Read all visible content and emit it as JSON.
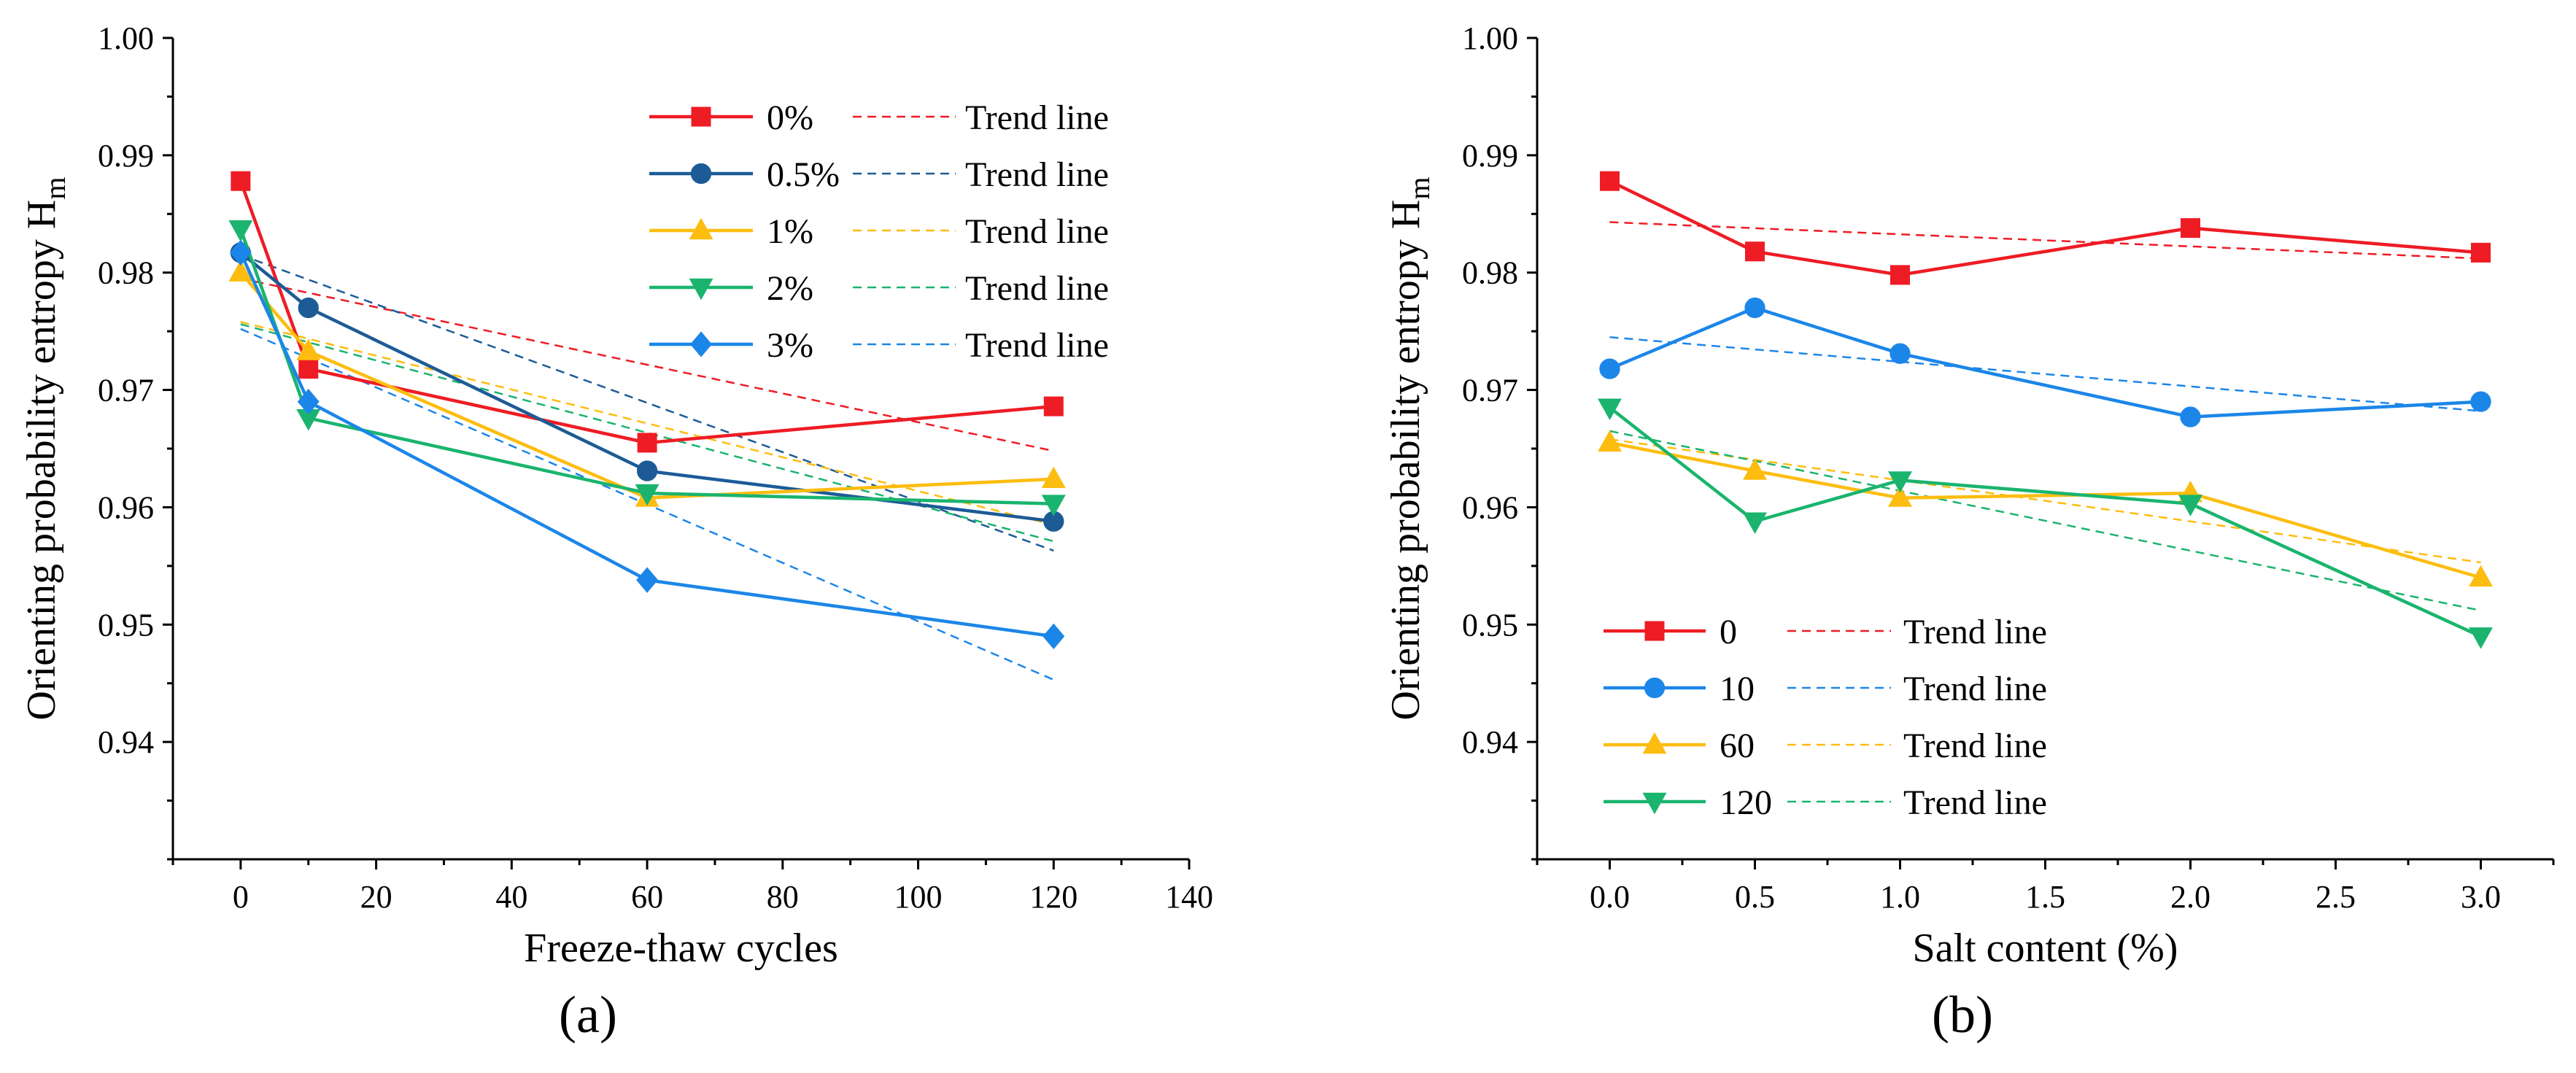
{
  "chart_data": [
    {
      "type": "line",
      "panel_label": "(a)",
      "xlabel": "Freeze-thaw cycles",
      "ylabel": "Orienting probability entropy H",
      "ylabel_subscript": "m",
      "xlim": [
        -10,
        140
      ],
      "ylim": [
        0.93,
        1.0
      ],
      "xticks": [
        0,
        20,
        40,
        60,
        80,
        100,
        120,
        140
      ],
      "xtick_labels": [
        "0",
        "20",
        "40",
        "60",
        "80",
        "100",
        "120",
        "140"
      ],
      "yticks": [
        0.94,
        0.95,
        0.96,
        0.97,
        0.98,
        0.99,
        1.0
      ],
      "ytick_labels": [
        "0.94",
        "0.95",
        "0.96",
        "0.97",
        "0.98",
        "0.99",
        "1.00"
      ],
      "legend_position": "top-right",
      "trend_label": "Trend line",
      "x": [
        0,
        10,
        60,
        120
      ],
      "series": [
        {
          "name": "0%",
          "color": "#ee1c24",
          "marker": "square",
          "values": [
            0.9878,
            0.9718,
            0.9655,
            0.9686
          ],
          "trend": [
            0.9795,
            0.9648
          ]
        },
        {
          "name": "0.5%",
          "color": "#1c5b96",
          "marker": "circle",
          "values": [
            0.9817,
            0.977,
            0.9631,
            0.9588
          ],
          "trend": [
            0.9815,
            0.9563
          ]
        },
        {
          "name": "1%",
          "color": "#fdbd10",
          "marker": "triangle-up",
          "values": [
            0.98,
            0.9733,
            0.9608,
            0.9624
          ],
          "trend": [
            0.9758,
            0.9585
          ]
        },
        {
          "name": "2%",
          "color": "#1ab46e",
          "marker": "triangle-down",
          "values": [
            0.9837,
            0.9676,
            0.9612,
            0.9603
          ],
          "trend": [
            0.9756,
            0.9571
          ]
        },
        {
          "name": "3%",
          "color": "#1c86e8",
          "marker": "diamond",
          "values": [
            0.9817,
            0.969,
            0.9538,
            0.949
          ],
          "trend": [
            0.9752,
            0.9453
          ]
        }
      ]
    },
    {
      "type": "line",
      "panel_label": "(b)",
      "xlabel": "Salt content (%)",
      "ylabel": "Orienting probability entropy H",
      "ylabel_subscript": "m",
      "xlim": [
        -0.25,
        3.25
      ],
      "ylim": [
        0.93,
        1.0
      ],
      "xticks": [
        0,
        0.5,
        1,
        1.5,
        2,
        2.5,
        3
      ],
      "xtick_labels": [
        "0.0",
        "0.5",
        "1.0",
        "1.5",
        "2.0",
        "2.5",
        "3.0"
      ],
      "yticks": [
        0.94,
        0.95,
        0.96,
        0.97,
        0.98,
        0.99,
        1.0
      ],
      "ytick_labels": [
        "0.94",
        "0.95",
        "0.96",
        "0.97",
        "0.98",
        "0.99",
        "1.00"
      ],
      "legend_position": "bottom-left",
      "trend_label": "Trend line",
      "x": [
        0,
        0.5,
        1,
        2,
        3
      ],
      "series": [
        {
          "name": "0",
          "color": "#ee1c24",
          "marker": "square",
          "values": [
            0.9878,
            0.9818,
            0.9798,
            0.9838,
            0.9817
          ],
          "trend": [
            0.9843,
            0.9812
          ]
        },
        {
          "name": "10",
          "color": "#1c86e8",
          "marker": "circle",
          "values": [
            0.9718,
            0.977,
            0.9731,
            0.9677,
            0.969
          ],
          "trend": [
            0.9745,
            0.9682
          ]
        },
        {
          "name": "60",
          "color": "#fdbd10",
          "marker": "triangle-up",
          "values": [
            0.9655,
            0.9631,
            0.9608,
            0.9612,
            0.954
          ],
          "trend": [
            0.9658,
            0.9553
          ]
        },
        {
          "name": "120",
          "color": "#1ab46e",
          "marker": "triangle-down",
          "values": [
            0.9685,
            0.9588,
            0.9623,
            0.9603,
            0.949
          ],
          "trend": [
            0.9665,
            0.9512
          ]
        }
      ]
    }
  ]
}
